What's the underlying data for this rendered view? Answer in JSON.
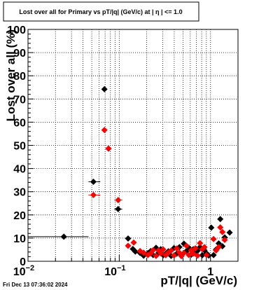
{
  "footer": {
    "timestamp": "Fri Dec 13 07:36:02 2024"
  },
  "colors": {
    "series_black": "#000000",
    "series_red": "#ff0000",
    "background": "#ffffff"
  },
  "chart_data": {
    "type": "scatter",
    "title": "Lost over all for Primary vs pT/|q| (GeV/c) at |  η  | <= 1.0",
    "xlabel": "pT/|q| (GeV/c)",
    "ylabel": "Lost over all (%)",
    "xscale": "log",
    "xlim": [
      0.01,
      2.0
    ],
    "ylim": [
      0,
      100
    ],
    "grid": true,
    "yticks": [
      "0",
      "10",
      "20",
      "30",
      "40",
      "50",
      "60",
      "70",
      "80",
      "90",
      "100"
    ],
    "xticks": [
      {
        "value": 0.01,
        "label": "10",
        "sup": "−2"
      },
      {
        "value": 0.1,
        "label": "10",
        "sup": "−1"
      },
      {
        "value": 1,
        "label": "1",
        "sup": ""
      }
    ],
    "series": [
      {
        "color": "#000000",
        "points": [
          {
            "x": 0.0247,
            "y": 10.6,
            "xlo": 0.01,
            "xhi": 0.046
          },
          {
            "x": 0.0521,
            "y": 34.3,
            "xlo": 0.046,
            "xhi": 0.062
          },
          {
            "x": 0.0688,
            "y": 74.2
          },
          {
            "x": 0.0762,
            "y": 48.6
          },
          {
            "x": 0.0972,
            "y": 22.5,
            "xlo": 0.088,
            "xhi": 0.108
          },
          {
            "x": 0.125,
            "y": 9.8
          },
          {
            "x": 0.141,
            "y": 5.3
          },
          {
            "x": 0.15,
            "y": 4.2
          },
          {
            "x": 0.169,
            "y": 3.6
          },
          {
            "x": 0.185,
            "y": 2.4
          },
          {
            "x": 0.206,
            "y": 3.5
          },
          {
            "x": 0.221,
            "y": 4.4
          },
          {
            "x": 0.235,
            "y": 2.7
          },
          {
            "x": 0.253,
            "y": 5.8
          },
          {
            "x": 0.269,
            "y": 3.6
          },
          {
            "x": 0.285,
            "y": 5.2
          },
          {
            "x": 0.303,
            "y": 2.6
          },
          {
            "x": 0.323,
            "y": 3.2
          },
          {
            "x": 0.345,
            "y": 4.3
          },
          {
            "x": 0.37,
            "y": 2.3
          },
          {
            "x": 0.398,
            "y": 5.7
          },
          {
            "x": 0.427,
            "y": 3.3
          },
          {
            "x": 0.456,
            "y": 6.1
          },
          {
            "x": 0.48,
            "y": 2.6
          },
          {
            "x": 0.511,
            "y": 7.6
          },
          {
            "x": 0.545,
            "y": 4.4
          },
          {
            "x": 0.579,
            "y": 5.8
          },
          {
            "x": 0.613,
            "y": 2.8
          },
          {
            "x": 0.647,
            "y": 5.2
          },
          {
            "x": 0.682,
            "y": 3.3
          },
          {
            "x": 0.721,
            "y": 4.5
          },
          {
            "x": 0.767,
            "y": 6.1
          },
          {
            "x": 0.812,
            "y": 2.6
          },
          {
            "x": 0.858,
            "y": 4.7
          },
          {
            "x": 0.905,
            "y": 3.4
          },
          {
            "x": 0.956,
            "y": 2.5
          },
          {
            "x": 1.02,
            "y": 14.5
          },
          {
            "x": 1.08,
            "y": 2.7
          },
          {
            "x": 1.15,
            "y": 5.1
          },
          {
            "x": 1.23,
            "y": 7.7
          },
          {
            "x": 1.28,
            "y": 18.2
          },
          {
            "x": 1.35,
            "y": 6.5
          },
          {
            "x": 1.43,
            "y": 10.3
          },
          {
            "x": 1.62,
            "y": 12.4
          }
        ]
      },
      {
        "color": "#ff0000",
        "points": [
          {
            "x": 0.0521,
            "y": 28.6,
            "xlo": 0.046,
            "xhi": 0.062
          },
          {
            "x": 0.0688,
            "y": 56.6
          },
          {
            "x": 0.0762,
            "y": 48.6
          },
          {
            "x": 0.0972,
            "y": 26.4,
            "xlo": 0.088,
            "xhi": 0.108
          },
          {
            "x": 0.125,
            "y": 6.7
          },
          {
            "x": 0.144,
            "y": 8.1
          },
          {
            "x": 0.169,
            "y": 4.4
          },
          {
            "x": 0.185,
            "y": 3.7
          },
          {
            "x": 0.206,
            "y": 2.7
          },
          {
            "x": 0.221,
            "y": 3.4
          },
          {
            "x": 0.235,
            "y": 4.8
          },
          {
            "x": 0.253,
            "y": 2.3
          },
          {
            "x": 0.269,
            "y": 4.7
          },
          {
            "x": 0.285,
            "y": 3.4
          },
          {
            "x": 0.303,
            "y": 5.1
          },
          {
            "x": 0.323,
            "y": 2.6
          },
          {
            "x": 0.345,
            "y": 3.7
          },
          {
            "x": 0.37,
            "y": 4.6
          },
          {
            "x": 0.398,
            "y": 2.5
          },
          {
            "x": 0.427,
            "y": 5.5
          },
          {
            "x": 0.456,
            "y": 3.7
          },
          {
            "x": 0.48,
            "y": 2.2
          },
          {
            "x": 0.511,
            "y": 3.6
          },
          {
            "x": 0.545,
            "y": 6.7
          },
          {
            "x": 0.579,
            "y": 2.7
          },
          {
            "x": 0.613,
            "y": 4.7
          },
          {
            "x": 0.647,
            "y": 3.3
          },
          {
            "x": 0.682,
            "y": 5.6
          },
          {
            "x": 0.721,
            "y": 2.4
          },
          {
            "x": 0.767,
            "y": 7.8
          },
          {
            "x": 0.812,
            "y": 5.2
          },
          {
            "x": 0.858,
            "y": 6.1
          },
          {
            "x": 0.905,
            "y": 2.7
          },
          {
            "x": 1.08,
            "y": 9.6
          },
          {
            "x": 1.15,
            "y": 4.7
          },
          {
            "x": 1.23,
            "y": 6.1
          },
          {
            "x": 1.28,
            "y": 14.6
          },
          {
            "x": 1.35,
            "y": 12.6
          },
          {
            "x": 1.43,
            "y": 9.2
          }
        ]
      }
    ]
  }
}
